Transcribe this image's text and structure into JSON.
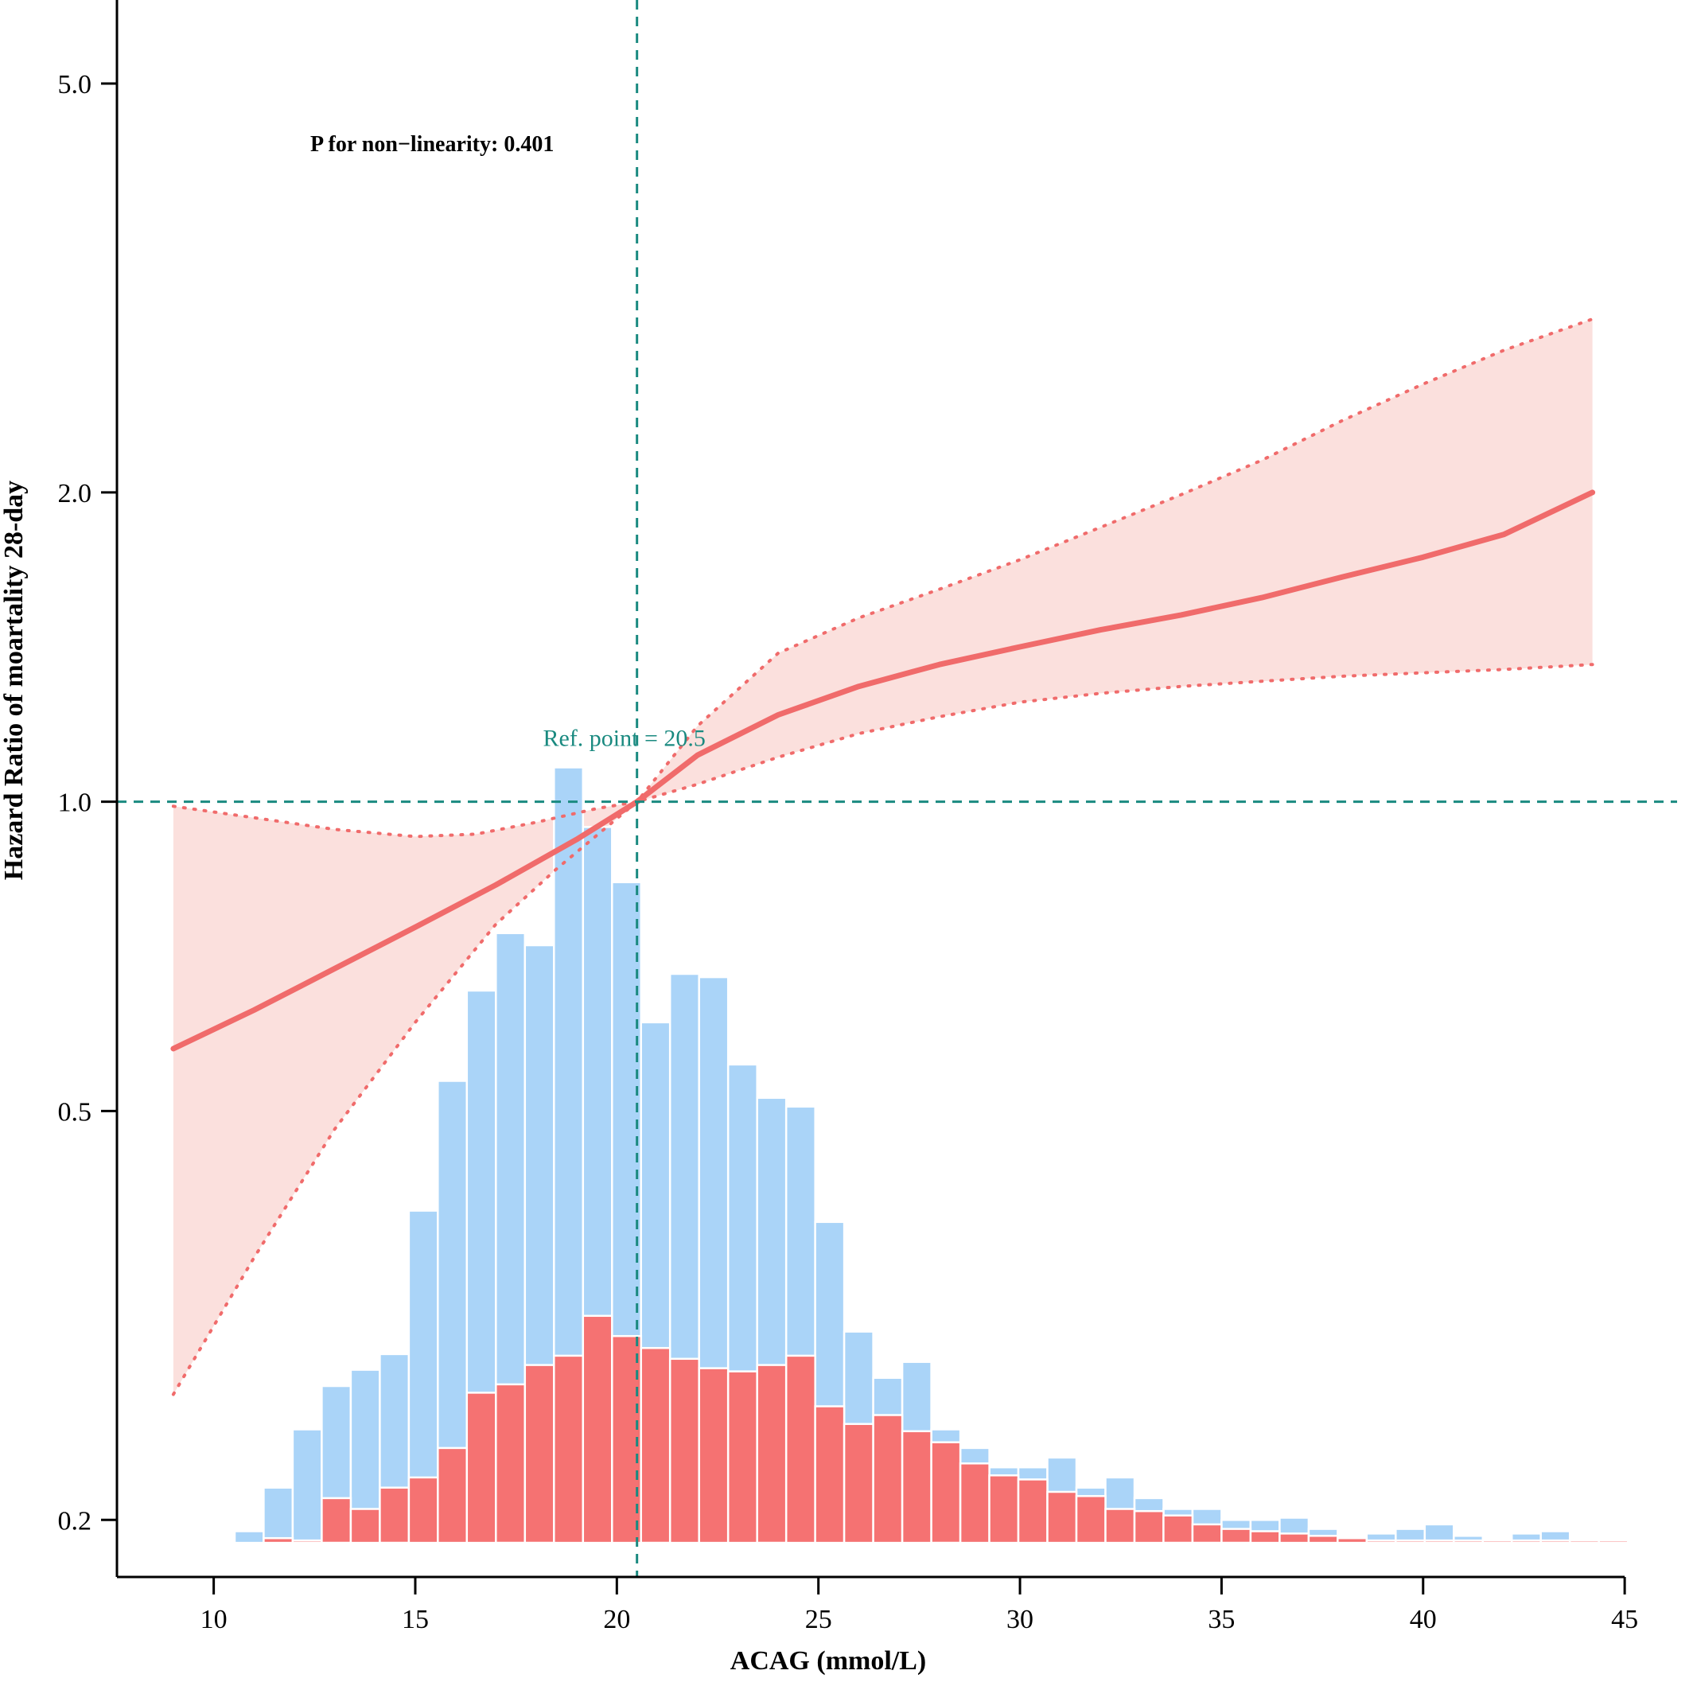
{
  "chart_data": {
    "type": "bar",
    "xlabel": "ACAG (mmol/L)",
    "ylabel": "Hazard Ratio of moartality 28-day",
    "annotation": "P for non−linearity: 0.401",
    "ref_label": "Ref. point = 20.5",
    "ref_x": 20.5,
    "ref_y": 1.0,
    "xlim": [
      7.6,
      46.3
    ],
    "ylim": [
      0.176,
      6.03
    ],
    "y_scale": "log",
    "x_ticks": [
      10,
      15,
      20,
      25,
      30,
      35,
      40,
      45
    ],
    "x_tick_labels": [
      "10",
      "15",
      "20",
      "25",
      "30",
      "35",
      "40",
      "45"
    ],
    "y_ticks": [
      0.2,
      0.5,
      1.0,
      2.0,
      5.0
    ],
    "y_tick_labels": [
      "0.2",
      "0.5",
      "1.0",
      "2.0",
      "5.0"
    ],
    "grid": false,
    "histogram": {
      "bin_width": 0.72,
      "x_start": 9.8,
      "series": [
        {
          "color": "#aad4f8",
          "values": [
            0.0,
            0.195,
            0.215,
            0.245,
            0.27,
            0.28,
            0.29,
            0.4,
            0.535,
            0.655,
            0.745,
            0.725,
            1.08,
            0.945,
            0.835,
            0.61,
            0.68,
            0.675,
            0.555,
            0.515,
            0.505,
            0.39,
            0.305,
            0.275,
            0.285,
            0.245,
            0.235,
            0.225,
            0.225,
            0.23,
            0.215,
            0.22,
            0.21,
            0.205,
            0.205,
            0.2,
            0.2,
            0.201,
            0.196,
            0.191,
            0.194,
            0.196,
            0.198,
            0.193,
            0.191,
            0.194,
            0.195,
            0.191,
            0.0
          ]
        },
        {
          "color": "#f57272",
          "values": [
            0.19,
            0.0,
            0.192,
            0.191,
            0.21,
            0.205,
            0.215,
            0.22,
            0.235,
            0.266,
            0.271,
            0.283,
            0.289,
            0.316,
            0.302,
            0.294,
            0.287,
            0.281,
            0.279,
            0.283,
            0.289,
            0.258,
            0.248,
            0.253,
            0.244,
            0.238,
            0.227,
            0.221,
            0.219,
            0.213,
            0.211,
            0.205,
            0.204,
            0.202,
            0.198,
            0.196,
            0.195,
            0.194,
            0.193,
            0.192,
            0.191,
            0.191,
            0.191,
            0.191,
            0.191,
            0.191,
            0.191,
            0.191,
            0.191
          ]
        }
      ]
    },
    "series": [
      {
        "type": "line",
        "color": "#f06b6b",
        "x": [
          9.0,
          11.0,
          13.0,
          15.0,
          17.0,
          19.0,
          20.5,
          22.0,
          24.0,
          26.0,
          28.0,
          30.0,
          32.0,
          34.0,
          36.0,
          38.0,
          40.0,
          42.0,
          44.2
        ],
        "y": [
          0.575,
          0.627,
          0.688,
          0.755,
          0.83,
          0.919,
          1.0,
          1.11,
          1.215,
          1.295,
          1.36,
          1.415,
          1.47,
          1.52,
          1.58,
          1.655,
          1.73,
          1.82,
          2.0
        ]
      },
      {
        "type": "line",
        "style": "dotted",
        "color": "#f06b6b",
        "x": [
          9.0,
          11.0,
          13.0,
          15.0,
          16.5,
          18.0,
          19.5,
          20.5,
          22.0,
          24.0,
          26.0,
          28.0,
          30.0,
          32.0,
          34.0,
          36.0,
          38.0,
          40.0,
          42.0,
          44.2
        ],
        "y": [
          0.99,
          0.965,
          0.94,
          0.925,
          0.93,
          0.955,
          0.985,
          1.0,
          1.04,
          1.105,
          1.165,
          1.21,
          1.25,
          1.275,
          1.295,
          1.31,
          1.325,
          1.335,
          1.345,
          1.36
        ]
      },
      {
        "type": "line",
        "style": "dotted",
        "color": "#f06b6b",
        "x": [
          9.0,
          11.0,
          13.0,
          15.0,
          17.0,
          18.5,
          20.5,
          22.0,
          24.0,
          26.0,
          28.0,
          30.0,
          32.0,
          34.0,
          36.0,
          38.0,
          40.0,
          42.0,
          44.2
        ],
        "y": [
          0.265,
          0.36,
          0.48,
          0.61,
          0.76,
          0.86,
          1.0,
          1.185,
          1.395,
          1.51,
          1.61,
          1.72,
          1.85,
          1.99,
          2.15,
          2.35,
          2.55,
          2.75,
          2.95
        ]
      }
    ]
  }
}
